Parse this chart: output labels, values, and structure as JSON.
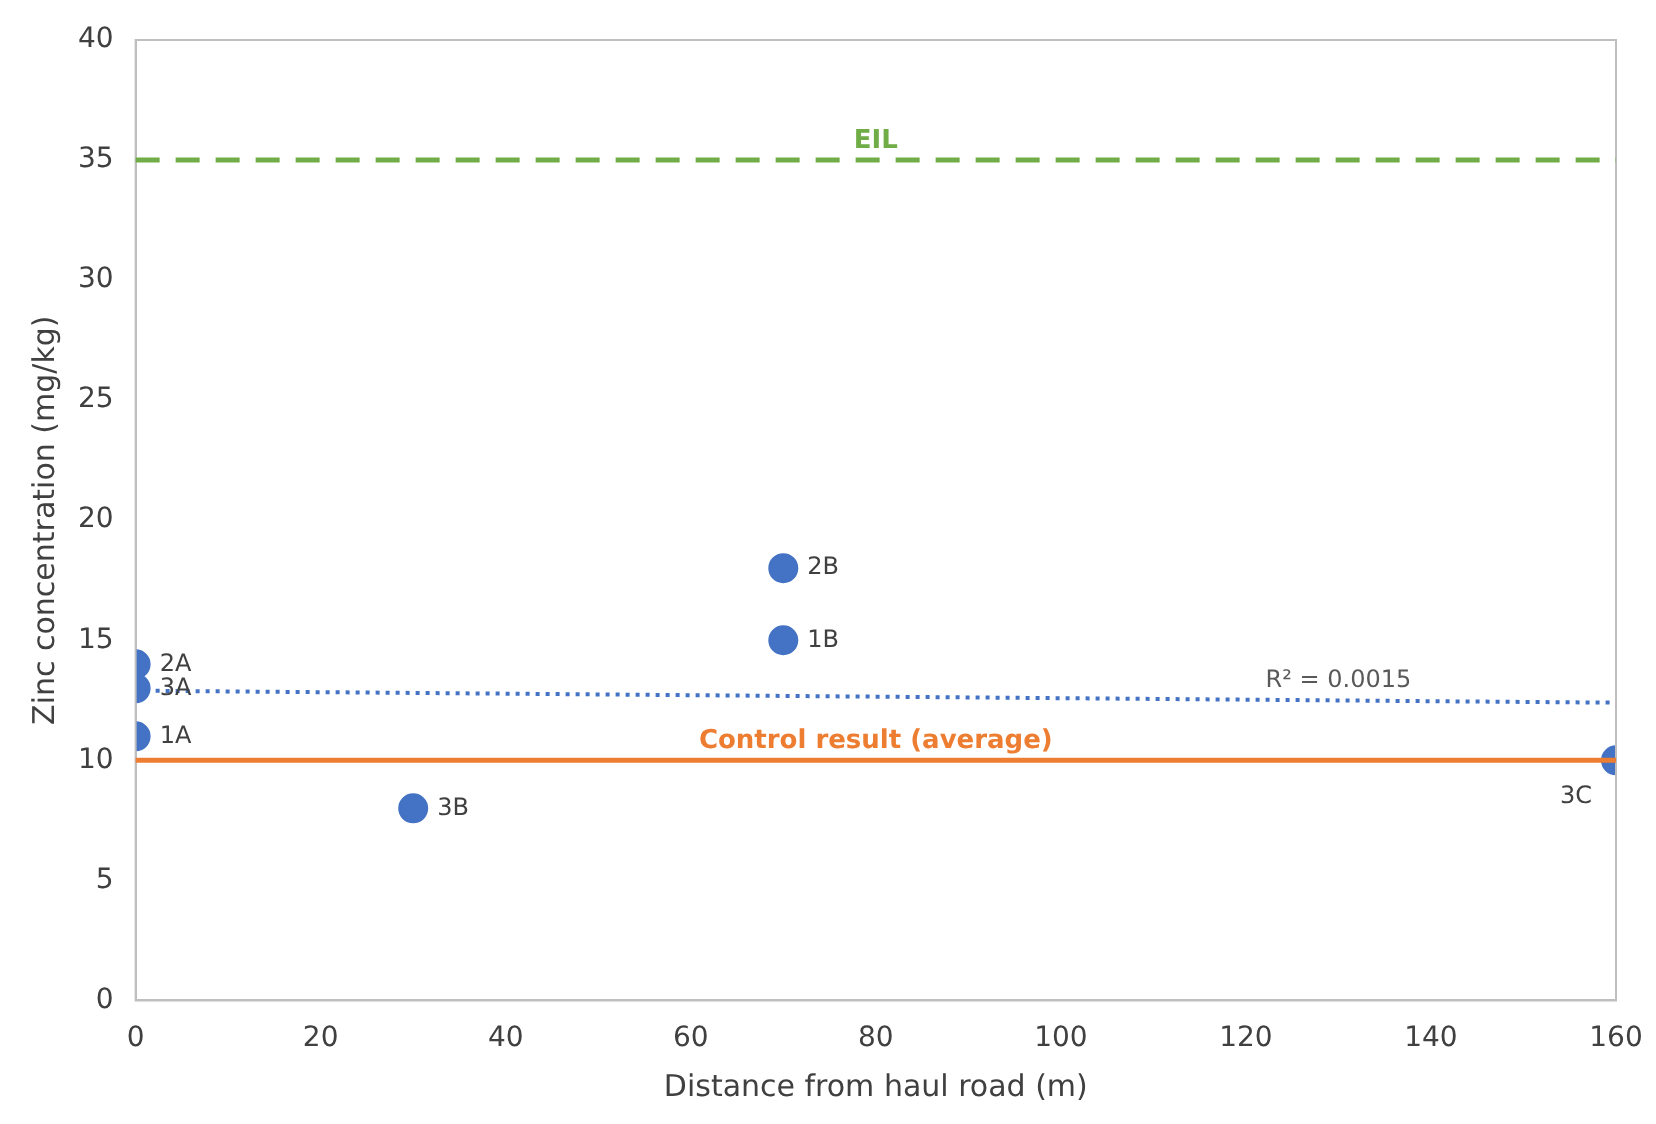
{
  "chart_data": {
    "type": "scatter",
    "xlabel": "Distance from haul road (m)",
    "ylabel": "Zinc concentration (mg/kg)",
    "series": [
      {
        "name": "1A",
        "color": "#4472c4",
        "x": [
          0
        ],
        "values": [
          11
        ]
      },
      {
        "name": "2A",
        "color": "#4472c4",
        "x": [
          0
        ],
        "values": [
          14
        ]
      },
      {
        "name": "3A",
        "color": "#4472c4",
        "x": [
          0
        ],
        "values": [
          13
        ]
      },
      {
        "name": "3B",
        "color": "#4472c4",
        "x": [
          30
        ],
        "values": [
          8
        ]
      },
      {
        "name": "1B",
        "color": "#4472c4",
        "x": [
          70
        ],
        "values": [
          15
        ]
      },
      {
        "name": "2B",
        "color": "#4472c4",
        "x": [
          70
        ],
        "values": [
          18
        ]
      },
      {
        "name": "3C",
        "color": "#4472c4",
        "x": [
          160
        ],
        "values": [
          10
        ]
      },
      {
        "type": "line",
        "color": "#4472c4",
        "line_style": "dotted",
        "marker": "none",
        "x": [
          0,
          160
        ],
        "values": [
          12.9,
          12.4
        ]
      }
    ],
    "ref_lines": [
      {
        "axis": "y",
        "value": 35,
        "label": "EIL",
        "color": "#70ad47",
        "line_style": "dashed"
      },
      {
        "axis": "y",
        "value": 10,
        "label": "Control result (average)",
        "color": "#ed7d31",
        "line_style": "solid"
      }
    ],
    "annotations": [
      {
        "text": "R² = 0.0015",
        "x": 130,
        "y": 12.5
      }
    ],
    "marker": "circle",
    "xlim": [
      0,
      160
    ],
    "xticks": [
      0,
      20,
      40,
      60,
      80,
      100,
      120,
      140,
      160
    ],
    "ylim": [
      0,
      40
    ],
    "yticks": [
      0,
      5,
      10,
      15,
      20,
      25,
      30,
      35,
      40
    ],
    "grid": false,
    "legend": false
  }
}
